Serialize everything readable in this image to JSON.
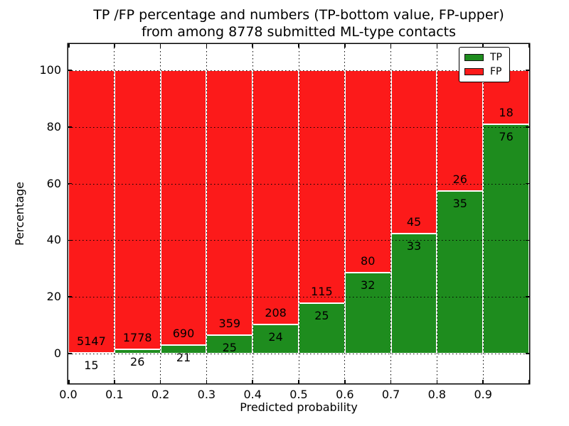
{
  "title": {
    "line1": "TP /FP percentage and numbers (TP-bottom value, FP-upper)",
    "line2": "from among 8778 submitted ML-type contacts"
  },
  "axes": {
    "xlabel": "Predicted probability",
    "ylabel": "Percentage",
    "x_tick_labels": [
      "0.0",
      "0.1",
      "0.2",
      "0.3",
      "0.4",
      "0.5",
      "0.6",
      "0.7",
      "0.8",
      "0.9"
    ],
    "y_tick_labels": [
      "0",
      "20",
      "40",
      "60",
      "80",
      "100"
    ]
  },
  "legend": {
    "items": [
      {
        "label": "TP",
        "color": "#1e8c1e"
      },
      {
        "label": "FP",
        "color": "#fc1a1a"
      }
    ]
  },
  "colors": {
    "tp": "#1e8c1e",
    "fp": "#fc1a1a",
    "grid": "#000000",
    "background": "#ffffff"
  },
  "chart_data": {
    "type": "bar",
    "stacked": true,
    "normalized_to_percent": 100,
    "title": "TP /FP percentage and numbers (TP-bottom value, FP-upper) from among 8778 submitted ML-type contacts",
    "xlabel": "Predicted probability",
    "ylabel": "Percentage",
    "total_contacts": 8778,
    "x_bins": [
      0.0,
      0.1,
      0.2,
      0.3,
      0.4,
      0.5,
      0.6,
      0.7,
      0.8,
      0.9,
      1.0
    ],
    "categories": [
      "0.0-0.1",
      "0.1-0.2",
      "0.2-0.3",
      "0.3-0.4",
      "0.4-0.5",
      "0.5-0.6",
      "0.6-0.7",
      "0.7-0.8",
      "0.8-0.9",
      "0.9-1.0"
    ],
    "series": [
      {
        "name": "TP",
        "color": "#1e8c1e",
        "position": "bottom",
        "counts": [
          15,
          26,
          21,
          25,
          24,
          25,
          32,
          33,
          35,
          76
        ]
      },
      {
        "name": "FP",
        "color": "#fc1a1a",
        "position": "top",
        "counts": [
          5147,
          1778,
          690,
          359,
          208,
          115,
          80,
          45,
          26,
          18
        ]
      }
    ],
    "tp_percent": [
      0.29,
      1.44,
      2.95,
      6.51,
      10.34,
      17.86,
      28.57,
      42.31,
      57.38,
      80.85
    ],
    "y_ticks": [
      0,
      20,
      40,
      60,
      80,
      100
    ],
    "ylim": [
      -10.5,
      109.3
    ],
    "xlim": [
      0.0,
      1.0
    ],
    "grid": "dotted",
    "legend_position": "upper right"
  }
}
